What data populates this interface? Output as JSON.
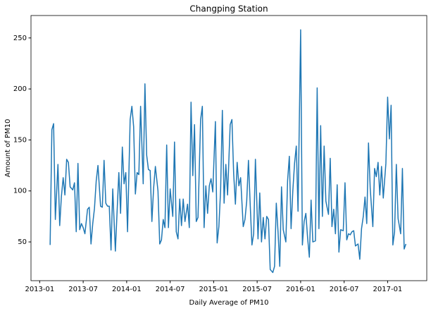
{
  "chart_data": {
    "type": "line",
    "title": "Changping Station",
    "xlabel": "Daily Average of PM10",
    "ylabel": "Amount of PM10",
    "x": [
      2013.12,
      2013.14,
      2013.16,
      2013.18,
      2013.21,
      2013.23,
      2013.25,
      2013.27,
      2013.29,
      2013.31,
      2013.33,
      2013.35,
      2013.38,
      2013.4,
      2013.42,
      2013.44,
      2013.46,
      2013.48,
      2013.5,
      2013.52,
      2013.55,
      2013.57,
      2013.59,
      2013.61,
      2013.63,
      2013.65,
      2013.67,
      2013.7,
      2013.72,
      2013.74,
      2013.76,
      2013.78,
      2013.8,
      2013.82,
      2013.84,
      2013.87,
      2013.89,
      2013.91,
      2013.93,
      2013.95,
      2013.97,
      2013.99,
      2014.01,
      2014.04,
      2014.06,
      2014.08,
      2014.1,
      2014.12,
      2014.14,
      2014.16,
      2014.19,
      2014.21,
      2014.23,
      2014.25,
      2014.27,
      2014.29,
      2014.31,
      2014.33,
      2014.36,
      2014.38,
      2014.4,
      2014.42,
      2014.44,
      2014.46,
      2014.48,
      2014.5,
      2014.53,
      2014.55,
      2014.57,
      2014.59,
      2014.61,
      2014.63,
      2014.65,
      2014.67,
      2014.7,
      2014.72,
      2014.74,
      2014.76,
      2014.78,
      2014.8,
      2014.82,
      2014.85,
      2014.87,
      2014.89,
      2014.91,
      2014.93,
      2014.95,
      2014.97,
      2014.99,
      2015.02,
      2015.04,
      2015.06,
      2015.08,
      2015.1,
      2015.12,
      2015.14,
      2015.16,
      2015.19,
      2015.21,
      2015.23,
      2015.25,
      2015.27,
      2015.29,
      2015.31,
      2015.34,
      2015.36,
      2015.38,
      2015.4,
      2015.42,
      2015.44,
      2015.46,
      2015.48,
      2015.51,
      2015.53,
      2015.55,
      2015.57,
      2015.59,
      2015.61,
      2015.63,
      2015.65,
      2015.68,
      2015.7,
      2015.72,
      2015.74,
      2015.76,
      2015.78,
      2015.8,
      2015.83,
      2015.85,
      2015.87,
      2015.89,
      2015.91,
      2015.93,
      2015.95,
      2015.97,
      2016.0,
      2016.02,
      2016.04,
      2016.06,
      2016.08,
      2016.1,
      2016.12,
      2016.14,
      2016.17,
      2016.19,
      2016.21,
      2016.23,
      2016.25,
      2016.27,
      2016.29,
      2016.32,
      2016.34,
      2016.36,
      2016.38,
      2016.4,
      2016.42,
      2016.44,
      2016.46,
      2016.49,
      2016.51,
      2016.53,
      2016.55,
      2016.57,
      2016.59,
      2016.61,
      2016.63,
      2016.66,
      2016.68,
      2016.7,
      2016.72,
      2016.74,
      2016.76,
      2016.78,
      2016.8,
      2016.83,
      2016.85,
      2016.87,
      2016.89,
      2016.91,
      2016.93,
      2016.95,
      2016.98,
      2017.0,
      2017.02,
      2017.04,
      2017.06,
      2017.08,
      2017.1,
      2017.12,
      2017.15,
      2017.17,
      2017.19,
      2017.21
    ],
    "series": [
      {
        "color": "#1f77b4",
        "values": [
          47,
          160,
          166,
          72,
          126,
          66,
          95,
          113,
          96,
          131,
          128,
          104,
          101,
          108,
          60,
          127,
          62,
          68,
          64,
          58,
          82,
          84,
          48,
          68,
          83,
          110,
          125,
          85,
          84,
          130,
          88,
          85,
          85,
          42,
          102,
          41,
          80,
          118,
          78,
          143,
          107,
          118,
          60,
          170,
          183,
          163,
          97,
          118,
          116,
          183,
          107,
          205,
          135,
          121,
          120,
          70,
          103,
          124,
          100,
          48,
          52,
          72,
          64,
          145,
          64,
          102,
          75,
          148,
          60,
          53,
          92,
          66,
          92,
          70,
          87,
          64,
          187,
          115,
          165,
          70,
          74,
          170,
          183,
          64,
          105,
          78,
          105,
          112,
          99,
          168,
          49,
          65,
          101,
          179,
          88,
          126,
          96,
          165,
          170,
          117,
          87,
          128,
          105,
          113,
          65,
          72,
          90,
          130,
          87,
          47,
          58,
          131,
          53,
          98,
          50,
          74,
          53,
          75,
          72,
          23,
          20,
          26,
          88,
          60,
          26,
          104,
          62,
          50,
          110,
          134,
          63,
          100,
          127,
          144,
          80,
          258,
          47,
          70,
          78,
          54,
          35,
          91,
          50,
          51,
          201,
          63,
          164,
          75,
          144,
          90,
          77,
          132,
          65,
          82,
          58,
          106,
          40,
          62,
          61,
          108,
          52,
          58,
          57,
          60,
          61,
          46,
          48,
          33,
          63,
          75,
          94,
          68,
          147,
          102,
          65,
          122,
          114,
          128,
          96,
          124,
          93,
          127,
          192,
          151,
          184,
          47,
          60,
          126,
          73,
          58,
          122,
          43,
          48
        ]
      }
    ],
    "xlim": [
      2012.9,
      2017.45
    ],
    "ylim": [
      12,
      272
    ],
    "xticks": [
      {
        "value": 2013.0,
        "label": "2013-01"
      },
      {
        "value": 2013.5,
        "label": "2013-07"
      },
      {
        "value": 2014.0,
        "label": "2014-01"
      },
      {
        "value": 2014.5,
        "label": "2014-07"
      },
      {
        "value": 2015.0,
        "label": "2015-01"
      },
      {
        "value": 2015.5,
        "label": "2015-07"
      },
      {
        "value": 2016.0,
        "label": "2016-01"
      },
      {
        "value": 2016.5,
        "label": "2016-07"
      },
      {
        "value": 2017.0,
        "label": "2017-01"
      }
    ],
    "yticks": [
      50,
      100,
      150,
      200,
      250
    ],
    "grid": false
  }
}
